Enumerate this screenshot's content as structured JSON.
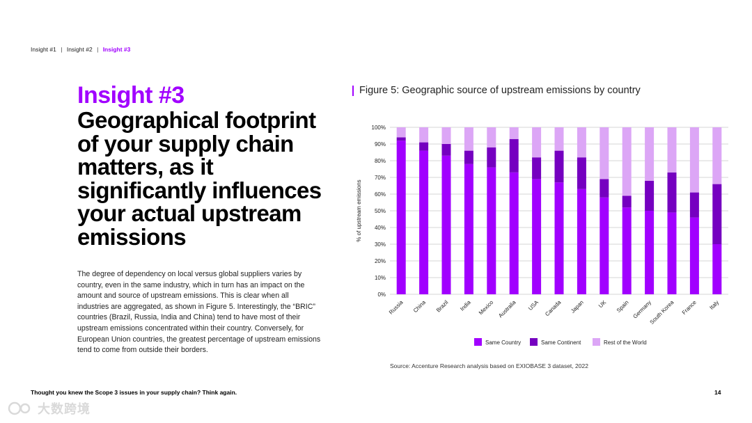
{
  "breadcrumb": {
    "items": [
      "Insight #1",
      "Insight #2",
      "Insight #3"
    ],
    "separator": "|"
  },
  "left": {
    "insight_label": "Insight #3",
    "headline": "Geographical footprint of your supply chain matters, as it significantly influences your actual upstream emissions",
    "body": "The degree of dependency on local versus global suppliers varies by country, even in the same industry, which in turn has an impact on the amount and source of upstream emissions. This is clear when all industries are aggregated, as shown in Figure 5. Interestingly, the “BRIC” countries (Brazil, Russia, India and China) tend to have most of their upstream emissions concentrated within their country. Conversely, for European Union countries, the greatest percentage of upstream emissions tend to come from outside their borders."
  },
  "figure": {
    "title": "Figure 5: Geographic source of upstream emissions by country",
    "source": "Source: Accenture Research analysis based on EXIOBASE 3 dataset, 2022"
  },
  "colors": {
    "accent": "#a100ff",
    "same_country": "#a100ff",
    "same_continent": "#7500c0",
    "rest_of_world": "#dca6f6"
  },
  "chart_data": {
    "type": "bar",
    "stacked": true,
    "title": "Figure 5: Geographic source of upstream emissions by country",
    "xlabel": "",
    "ylabel": "% of upstream emissions",
    "ylim": [
      0,
      100
    ],
    "yticks": [
      "0%",
      "10%",
      "20%",
      "30%",
      "40%",
      "50%",
      "60%",
      "70%",
      "80%",
      "90%",
      "100%"
    ],
    "categories": [
      "Russia",
      "China",
      "Brazil",
      "India",
      "Mexico",
      "Australia",
      "USA",
      "Canada",
      "Japan",
      "UK",
      "Spain",
      "Germany",
      "South Korea",
      "France",
      "Italy"
    ],
    "series": [
      {
        "name": "Same Country",
        "color": "#a100ff",
        "values": [
          92,
          86,
          83,
          78,
          76,
          73,
          69,
          67,
          63,
          58,
          52,
          50,
          49,
          46,
          30
        ]
      },
      {
        "name": "Same Continent",
        "color": "#7500c0",
        "values": [
          2,
          5,
          7,
          8,
          12,
          20,
          13,
          19,
          19,
          11,
          7,
          18,
          24,
          15,
          36
        ]
      },
      {
        "name": "Rest of the World",
        "color": "#dca6f6",
        "values": [
          6,
          9,
          10,
          14,
          12,
          7,
          18,
          14,
          18,
          31,
          41,
          32,
          27,
          39,
          34
        ]
      }
    ],
    "legend_position": "bottom",
    "grid": true
  },
  "footer": {
    "text": "Thought you knew the Scope 3 issues in your supply chain? Think again.",
    "page_number": "14"
  },
  "watermark": {
    "text": "大数跨境"
  }
}
